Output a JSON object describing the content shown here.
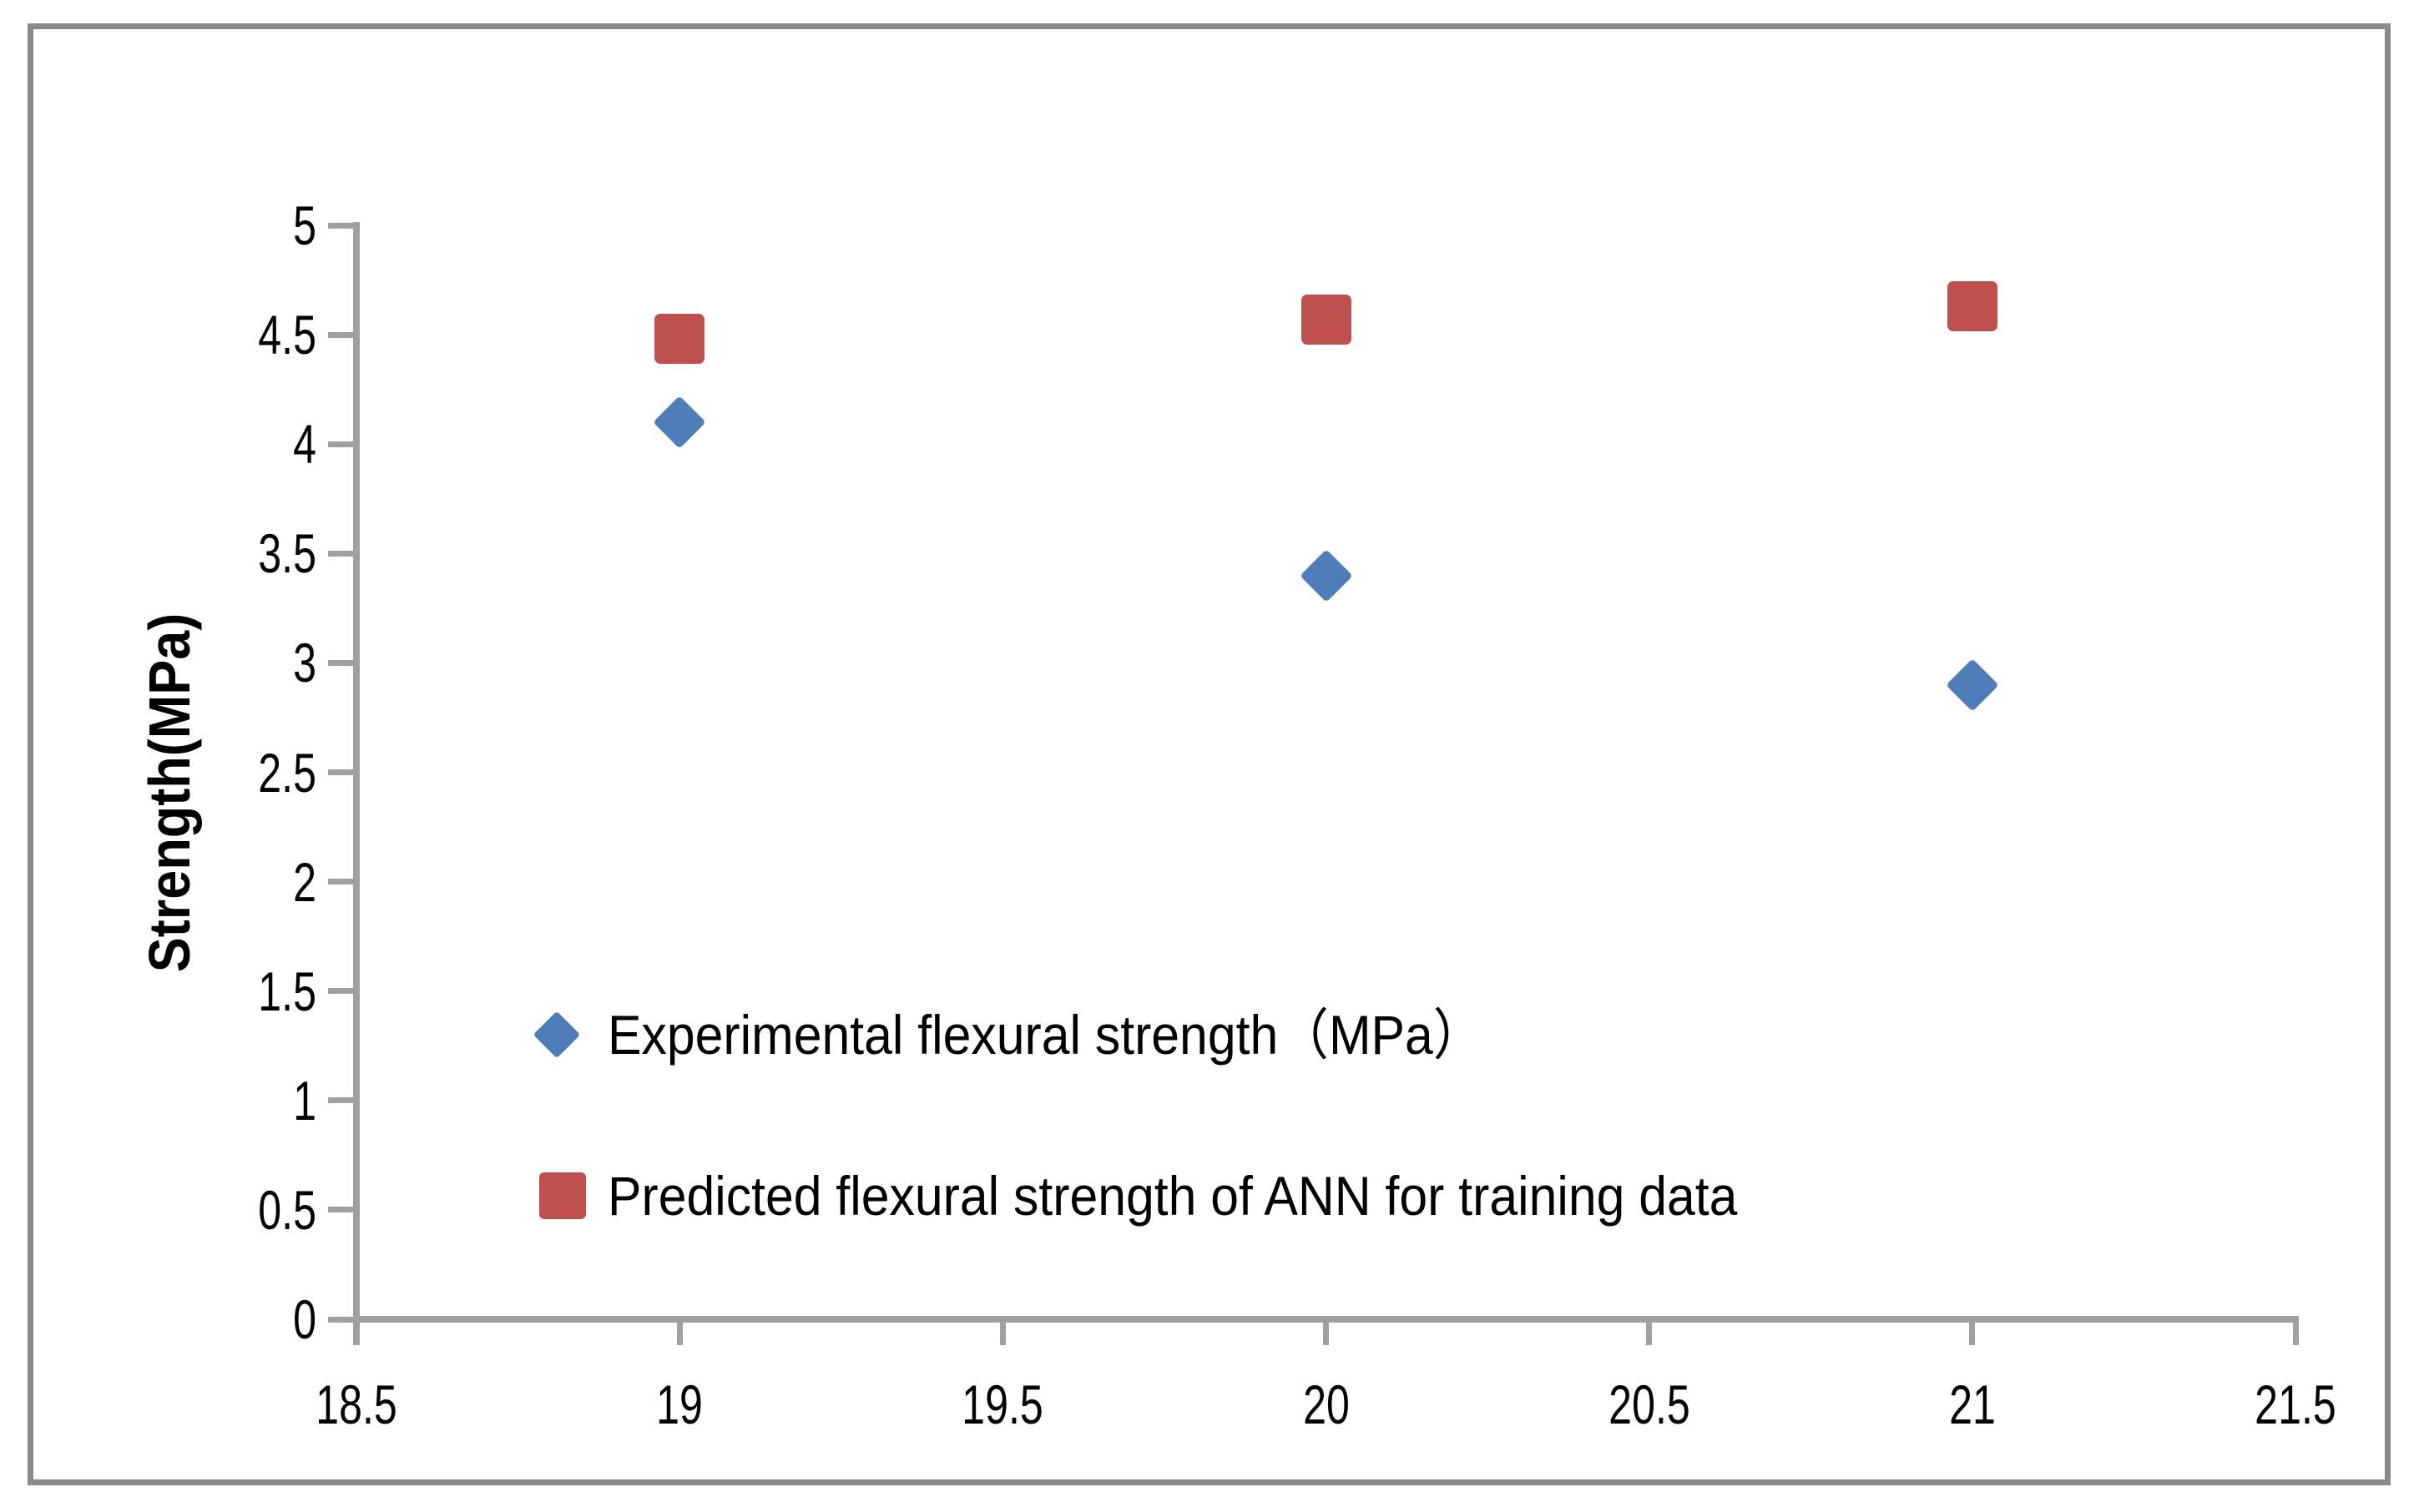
{
  "chart_data": {
    "type": "scatter",
    "title": "",
    "xlabel": "",
    "ylabel": "Strength(MPa)",
    "grid": false,
    "legend_position": "inside-bottom-left",
    "x_axis": {
      "min": 18.5,
      "max": 21.5,
      "step": 0.5,
      "ticks": [
        18.5,
        19,
        19.5,
        20,
        20.5,
        21,
        21.5
      ]
    },
    "y_axis": {
      "min": 0,
      "max": 5,
      "step": 0.5,
      "ticks": [
        0,
        0.5,
        1,
        1.5,
        2,
        2.5,
        3,
        3.5,
        4,
        4.5,
        5
      ]
    },
    "series": [
      {
        "name": "Experimental flexural strength（MPa）",
        "marker": "diamond",
        "color": "#4E7DB9",
        "points": [
          {
            "x": 19,
            "y": 4.1
          },
          {
            "x": 20,
            "y": 3.4
          },
          {
            "x": 21,
            "y": 2.9
          }
        ]
      },
      {
        "name": "Predicted flexural strength of ANN for training data",
        "marker": "square",
        "color": "#C0504D",
        "points": [
          {
            "x": 19,
            "y": 4.48
          },
          {
            "x": 20,
            "y": 4.57
          },
          {
            "x": 21,
            "y": 4.63
          }
        ]
      }
    ],
    "colors": {
      "axis": "#A0A0A0",
      "frame_border": "#8A8A8A",
      "text": "#000000",
      "background": "#FFFFFF"
    }
  }
}
